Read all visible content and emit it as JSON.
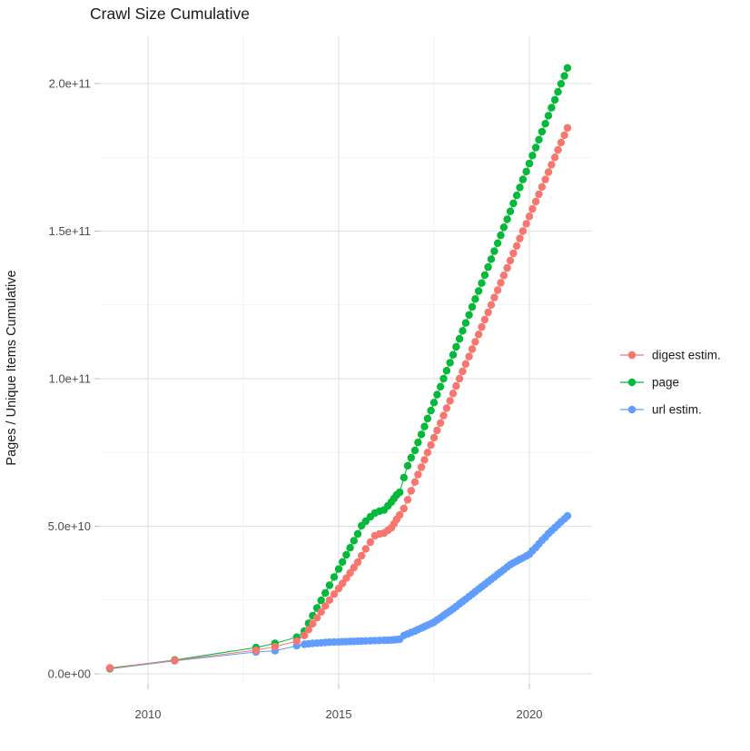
{
  "title": "Crawl Size Cumulative",
  "y_axis": {
    "label": "Pages / Unique Items Cumulative",
    "tick_values_1e9": [
      0,
      50,
      100,
      150,
      200
    ],
    "tick_labels": [
      "0.0e+00",
      "5.0e+10",
      "1.0e+11",
      "1.5e+11",
      "2.0e+11"
    ],
    "minor_tick_values_1e9": [
      25,
      75,
      125,
      175
    ]
  },
  "x_axis": {
    "tick_values": [
      2010,
      2015,
      2020
    ],
    "tick_labels": [
      "2010",
      "2015",
      "2020"
    ],
    "minor_tick_values": [
      2012.5,
      2017.5
    ]
  },
  "legend": {
    "position": "right",
    "items": [
      {
        "label": "digest estim.",
        "color": "#F8766D"
      },
      {
        "label": "page",
        "color": "#00BA38"
      },
      {
        "label": "url estim.",
        "color": "#619CFF"
      }
    ]
  },
  "colors": {
    "background": "#ffffff",
    "grid_major": "#e3e3e3",
    "grid_minor": "#efefef",
    "tick_mark": "#bdbdbd",
    "axis_text": "#4d4d4d",
    "title_text": "#1a1a1a",
    "legend_text": "#1a1a1a"
  },
  "chart_data": {
    "type": "line",
    "title": "Crawl Size Cumulative",
    "xlabel": "",
    "ylabel": "Pages / Unique Items Cumulative",
    "x_unit": "year (decimal)",
    "value_unit": "cumulative count, in billions (1e9)",
    "xlim": [
      2008.74,
      2021.64
    ],
    "ylim_1e9": [
      0,
      216
    ],
    "grid": true,
    "legend_position": "right",
    "x": [
      2009.0,
      2010.7,
      2012.83,
      2013.33,
      2013.9,
      2014.1,
      2014.21,
      2014.32,
      2014.43,
      2014.54,
      2014.65,
      2014.76,
      2014.88,
      2015.0,
      2015.1,
      2015.2,
      2015.3,
      2015.4,
      2015.5,
      2015.6,
      2015.71,
      2015.83,
      2015.95,
      2016.07,
      2016.19,
      2016.29,
      2016.38,
      2016.45,
      2016.52,
      2016.6,
      2016.71,
      2016.81,
      2016.9,
      2017.0,
      2017.08,
      2017.17,
      2017.25,
      2017.33,
      2017.42,
      2017.5,
      2017.58,
      2017.67,
      2017.75,
      2017.83,
      2017.92,
      2018.0,
      2018.08,
      2018.17,
      2018.25,
      2018.33,
      2018.42,
      2018.5,
      2018.58,
      2018.67,
      2018.75,
      2018.83,
      2018.92,
      2019.0,
      2019.08,
      2019.17,
      2019.25,
      2019.33,
      2019.42,
      2019.5,
      2019.58,
      2019.67,
      2019.75,
      2019.83,
      2019.92,
      2020.0,
      2020.08,
      2020.17,
      2020.25,
      2020.33,
      2020.42,
      2020.5,
      2020.58,
      2020.67,
      2020.75,
      2020.83,
      2020.92,
      2021.0
    ],
    "series": [
      {
        "name": "digest estim.",
        "color": "#F8766D",
        "values_1e9": [
          2.0,
          4.55,
          8.0,
          9.2,
          11.1,
          13.0,
          15.0,
          17.0,
          19.0,
          21.0,
          23.0,
          25.0,
          27.0,
          28.9,
          30.6,
          32.4,
          34.2,
          36.0,
          37.8,
          40.0,
          42.3,
          44.6,
          46.8,
          47.4,
          47.7,
          48.6,
          49.5,
          50.8,
          52.3,
          53.8,
          56.0,
          59.0,
          62.0,
          65.0,
          67.5,
          70.0,
          72.5,
          75.0,
          77.5,
          80.0,
          82.5,
          85.0,
          87.5,
          90.0,
          92.5,
          95.0,
          97.5,
          100.0,
          102.5,
          105.0,
          107.5,
          110.0,
          112.5,
          115.0,
          117.5,
          120.0,
          122.5,
          125.0,
          127.5,
          130.0,
          132.5,
          135.0,
          137.5,
          140.0,
          142.5,
          145.0,
          147.5,
          150.0,
          152.5,
          155.0,
          157.5,
          160.0,
          162.5,
          165.0,
          167.5,
          170.0,
          172.5,
          175.0,
          177.5,
          180.0,
          182.5,
          185.0
        ]
      },
      {
        "name": "page",
        "color": "#00BA38",
        "values_1e9": [
          1.8,
          4.7,
          8.9,
          10.3,
          12.4,
          14.5,
          17.1,
          19.7,
          22.3,
          24.9,
          27.4,
          30.0,
          32.8,
          35.5,
          37.9,
          40.3,
          42.7,
          45.1,
          47.4,
          50.2,
          51.7,
          53.2,
          54.5,
          55.1,
          55.5,
          56.9,
          58.2,
          59.4,
          60.6,
          61.5,
          66.5,
          70.5,
          73.2,
          75.7,
          78.4,
          81.1,
          83.8,
          86.5,
          89.2,
          91.9,
          94.6,
          97.3,
          100.0,
          102.7,
          105.4,
          108.1,
          110.8,
          113.5,
          116.2,
          118.9,
          121.6,
          124.3,
          127.0,
          129.7,
          132.4,
          135.1,
          137.8,
          140.5,
          143.2,
          145.9,
          148.6,
          151.3,
          154.0,
          156.7,
          159.4,
          162.1,
          164.8,
          167.5,
          170.2,
          172.9,
          175.6,
          178.3,
          181.0,
          183.7,
          186.4,
          189.1,
          191.8,
          194.5,
          197.2,
          199.9,
          202.6,
          205.3
        ]
      },
      {
        "name": "url estim.",
        "color": "#619CFF",
        "values_1e9": [
          1.7,
          4.4,
          7.4,
          7.8,
          9.5,
          10.0,
          10.2,
          10.3,
          10.4,
          10.5,
          10.6,
          10.7,
          10.75,
          10.8,
          10.85,
          10.9,
          10.95,
          11.0,
          11.05,
          11.1,
          11.15,
          11.2,
          11.25,
          11.3,
          11.35,
          11.4,
          11.45,
          11.5,
          11.6,
          11.7,
          13.0,
          13.5,
          14.0,
          14.5,
          15.0,
          15.5,
          16.0,
          16.5,
          17.0,
          17.5,
          18.25,
          19.0,
          19.75,
          20.5,
          21.25,
          22.0,
          22.8,
          23.7,
          24.5,
          25.3,
          26.2,
          27.0,
          27.8,
          28.7,
          29.5,
          30.3,
          31.2,
          32.0,
          32.8,
          33.7,
          34.5,
          35.3,
          36.2,
          37.0,
          37.6,
          38.2,
          38.8,
          39.3,
          39.9,
          40.5,
          41.7,
          42.8,
          44.0,
          45.2,
          46.3,
          47.5,
          48.5,
          49.5,
          50.5,
          51.5,
          52.5,
          53.5
        ]
      }
    ]
  }
}
